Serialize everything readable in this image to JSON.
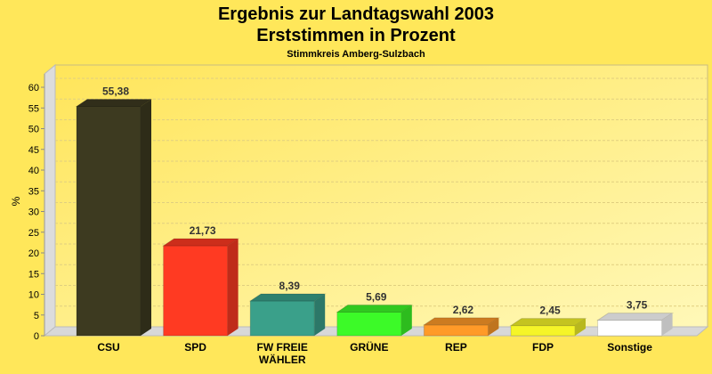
{
  "chart_data": {
    "type": "bar",
    "title": "Ergebnis zur Landtagswahl 2003",
    "subtitle": "Erststimmen in Prozent",
    "subtitle2": "Stimmkreis Amberg-Sulzbach",
    "xlabel": "",
    "ylabel": "%",
    "ylim": [
      0,
      60
    ],
    "yticks": [
      0,
      5,
      10,
      15,
      20,
      25,
      30,
      35,
      40,
      45,
      50,
      55,
      60
    ],
    "grid": true,
    "categories": [
      "CSU",
      "SPD",
      "FW FREIE WÄHLER",
      "GRÜNE",
      "REP",
      "FDP",
      "Sonstige"
    ],
    "category_lines": [
      [
        "CSU"
      ],
      [
        "SPD"
      ],
      [
        "FW FREIE",
        "WÄHLER"
      ],
      [
        "GRÜNE"
      ],
      [
        "REP"
      ],
      [
        "FDP"
      ],
      [
        "Sonstige"
      ]
    ],
    "values": [
      55.38,
      21.73,
      8.39,
      5.69,
      2.62,
      2.45,
      3.75
    ],
    "value_labels": [
      "55,38",
      "21,73",
      "8,39",
      "5,69",
      "2,62",
      "2,45",
      "3,75"
    ],
    "colors": [
      "#3d3a20",
      "#ff3a22",
      "#3aa08a",
      "#3cfa28",
      "#ff9a28",
      "#f5f528",
      "#ffffff"
    ]
  }
}
